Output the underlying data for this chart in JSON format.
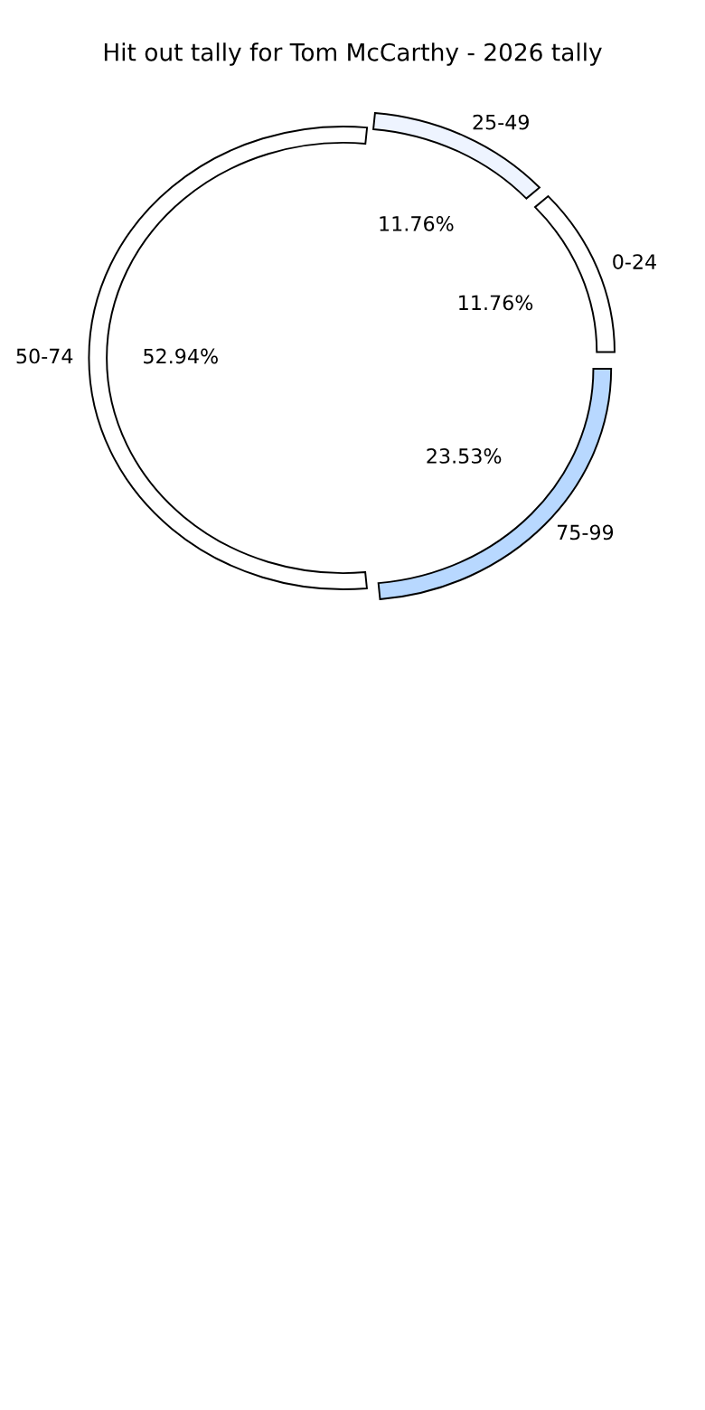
{
  "chart_data": {
    "type": "donut",
    "title": "Hit out tally for Tom McCarthy - 2026 tally",
    "categories": [
      "0-24",
      "25-49",
      "50-74",
      "75-99"
    ],
    "values": [
      11.76,
      11.76,
      52.94,
      23.53
    ],
    "colors": [
      "#ffffff",
      "#eef4ff",
      "#ffffff",
      "#b8d8ff"
    ],
    "value_labels": [
      "11.76%",
      "11.76%",
      "52.94%",
      "23.53%"
    ]
  }
}
